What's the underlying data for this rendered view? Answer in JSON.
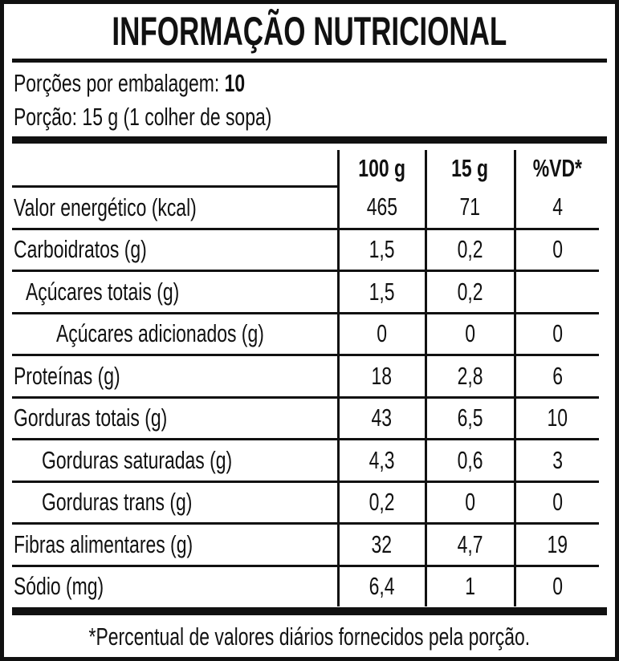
{
  "title": "INFORMAÇÃO NUTRICIONAL",
  "servings_label": "Porções por embalagem:",
  "servings_value": "10",
  "portion": "Porção: 15 g (1 colher de sopa)",
  "columns": [
    "100 g",
    "15 g",
    "%VD*"
  ],
  "rows": [
    {
      "label": "Valor energético (kcal)",
      "v100": "465",
      "vportion": "71",
      "vd": "4"
    },
    {
      "label": "Carboidratos (g)",
      "v100": "1,5",
      "vportion": "0,2",
      "vd": "0"
    },
    {
      "label": "Açúcares totais (g)",
      "v100": "1,5",
      "vportion": "0,2",
      "vd": ""
    },
    {
      "label": "Açúcares adicionados (g)",
      "v100": "0",
      "vportion": "0",
      "vd": "0"
    },
    {
      "label": "Proteínas (g)",
      "v100": "18",
      "vportion": "2,8",
      "vd": "6"
    },
    {
      "label": "Gorduras totais (g)",
      "v100": "43",
      "vportion": "6,5",
      "vd": "10"
    },
    {
      "label": "Gorduras saturadas (g)",
      "v100": "4,3",
      "vportion": "0,6",
      "vd": "3"
    },
    {
      "label": "Gorduras trans (g)",
      "v100": "0,2",
      "vportion": "0",
      "vd": "0"
    },
    {
      "label": "Fibras alimentares (g)",
      "v100": "32",
      "vportion": "4,7",
      "vd": "19"
    },
    {
      "label": "Sódio (mg)",
      "v100": "6,4",
      "vportion": "1",
      "vd": "0"
    }
  ],
  "footnote": "*Percentual de valores diários fornecidos pela porção."
}
